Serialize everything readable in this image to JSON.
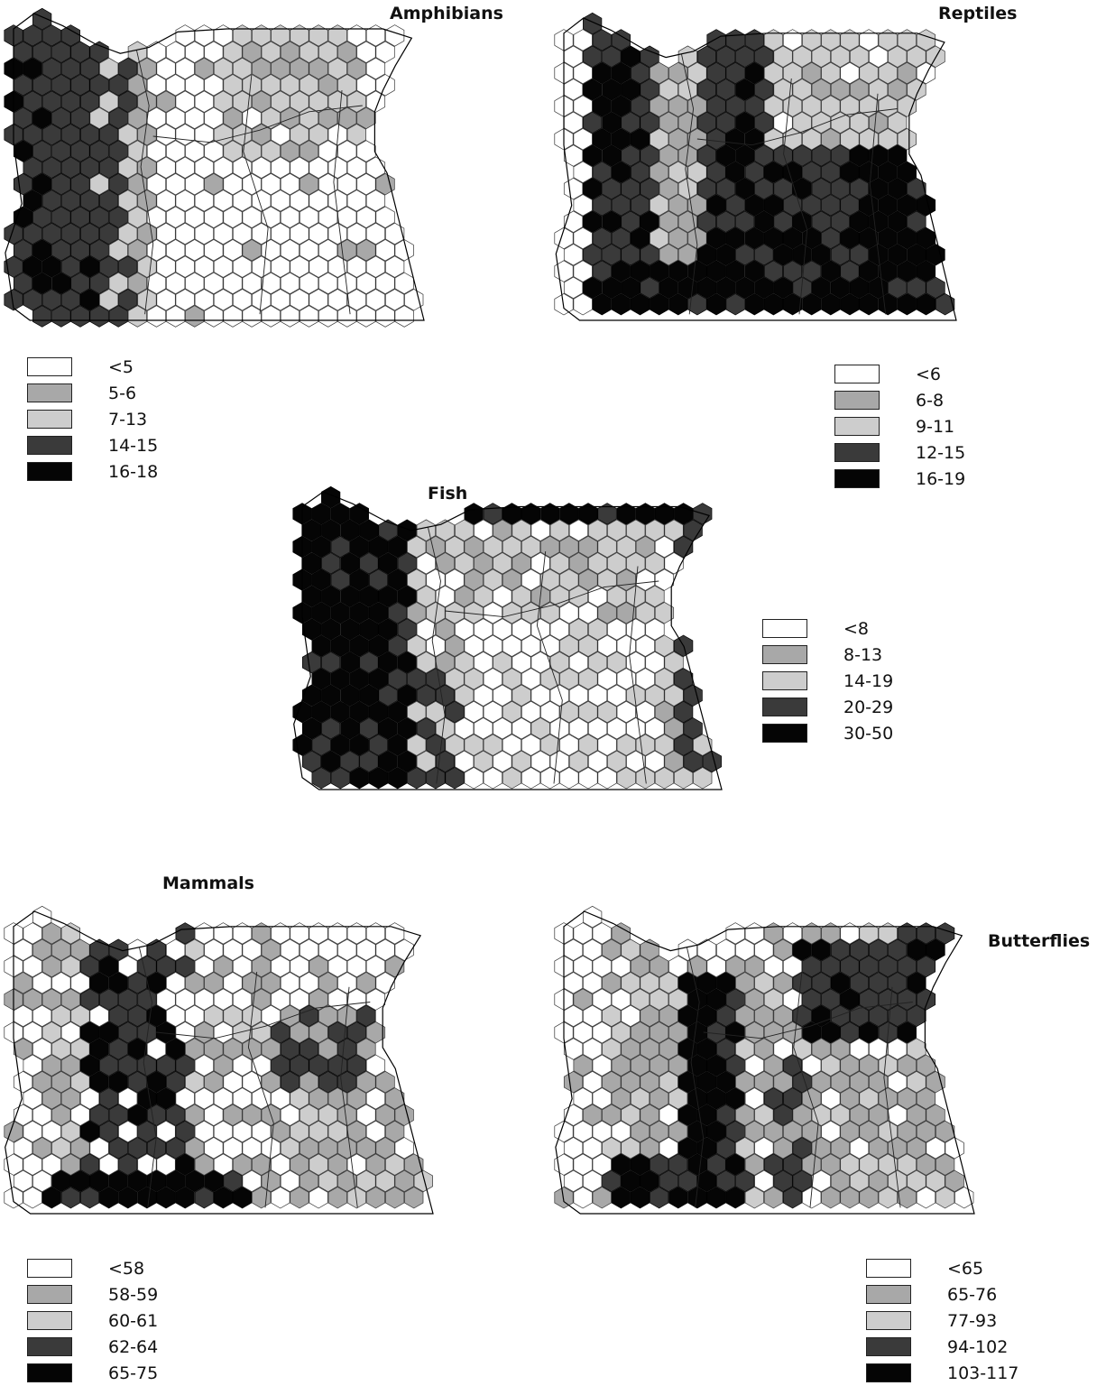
{
  "palette": [
    "#ffffff",
    "#a8a8a8",
    "#cdcdcd",
    "#3a3a3a",
    "#050505"
  ],
  "maps": [
    {
      "id": "amphibians",
      "title": "Amphibians",
      "legend": [
        "<5",
        "5-6",
        "7-13",
        "14-15",
        "16-18"
      ],
      "pattern": "amphibians"
    },
    {
      "id": "reptiles",
      "title": "Reptiles",
      "legend": [
        "<6",
        "6-8",
        "9-11",
        "12-15",
        "16-19"
      ],
      "pattern": "reptiles"
    },
    {
      "id": "fish",
      "title": "Fish",
      "legend": [
        "<8",
        "8-13",
        "14-19",
        "20-29",
        "30-50"
      ],
      "pattern": "fish"
    },
    {
      "id": "mammals",
      "title": "Mammals",
      "legend": [
        "<58",
        "58-59",
        "60-61",
        "62-64",
        "65-75"
      ],
      "pattern": "mammals"
    },
    {
      "id": "butterflies",
      "title": "Butterflies",
      "legend": [
        "<65",
        "65-76",
        "77-93",
        "94-102",
        "103-117"
      ],
      "pattern": "butterflies"
    }
  ]
}
